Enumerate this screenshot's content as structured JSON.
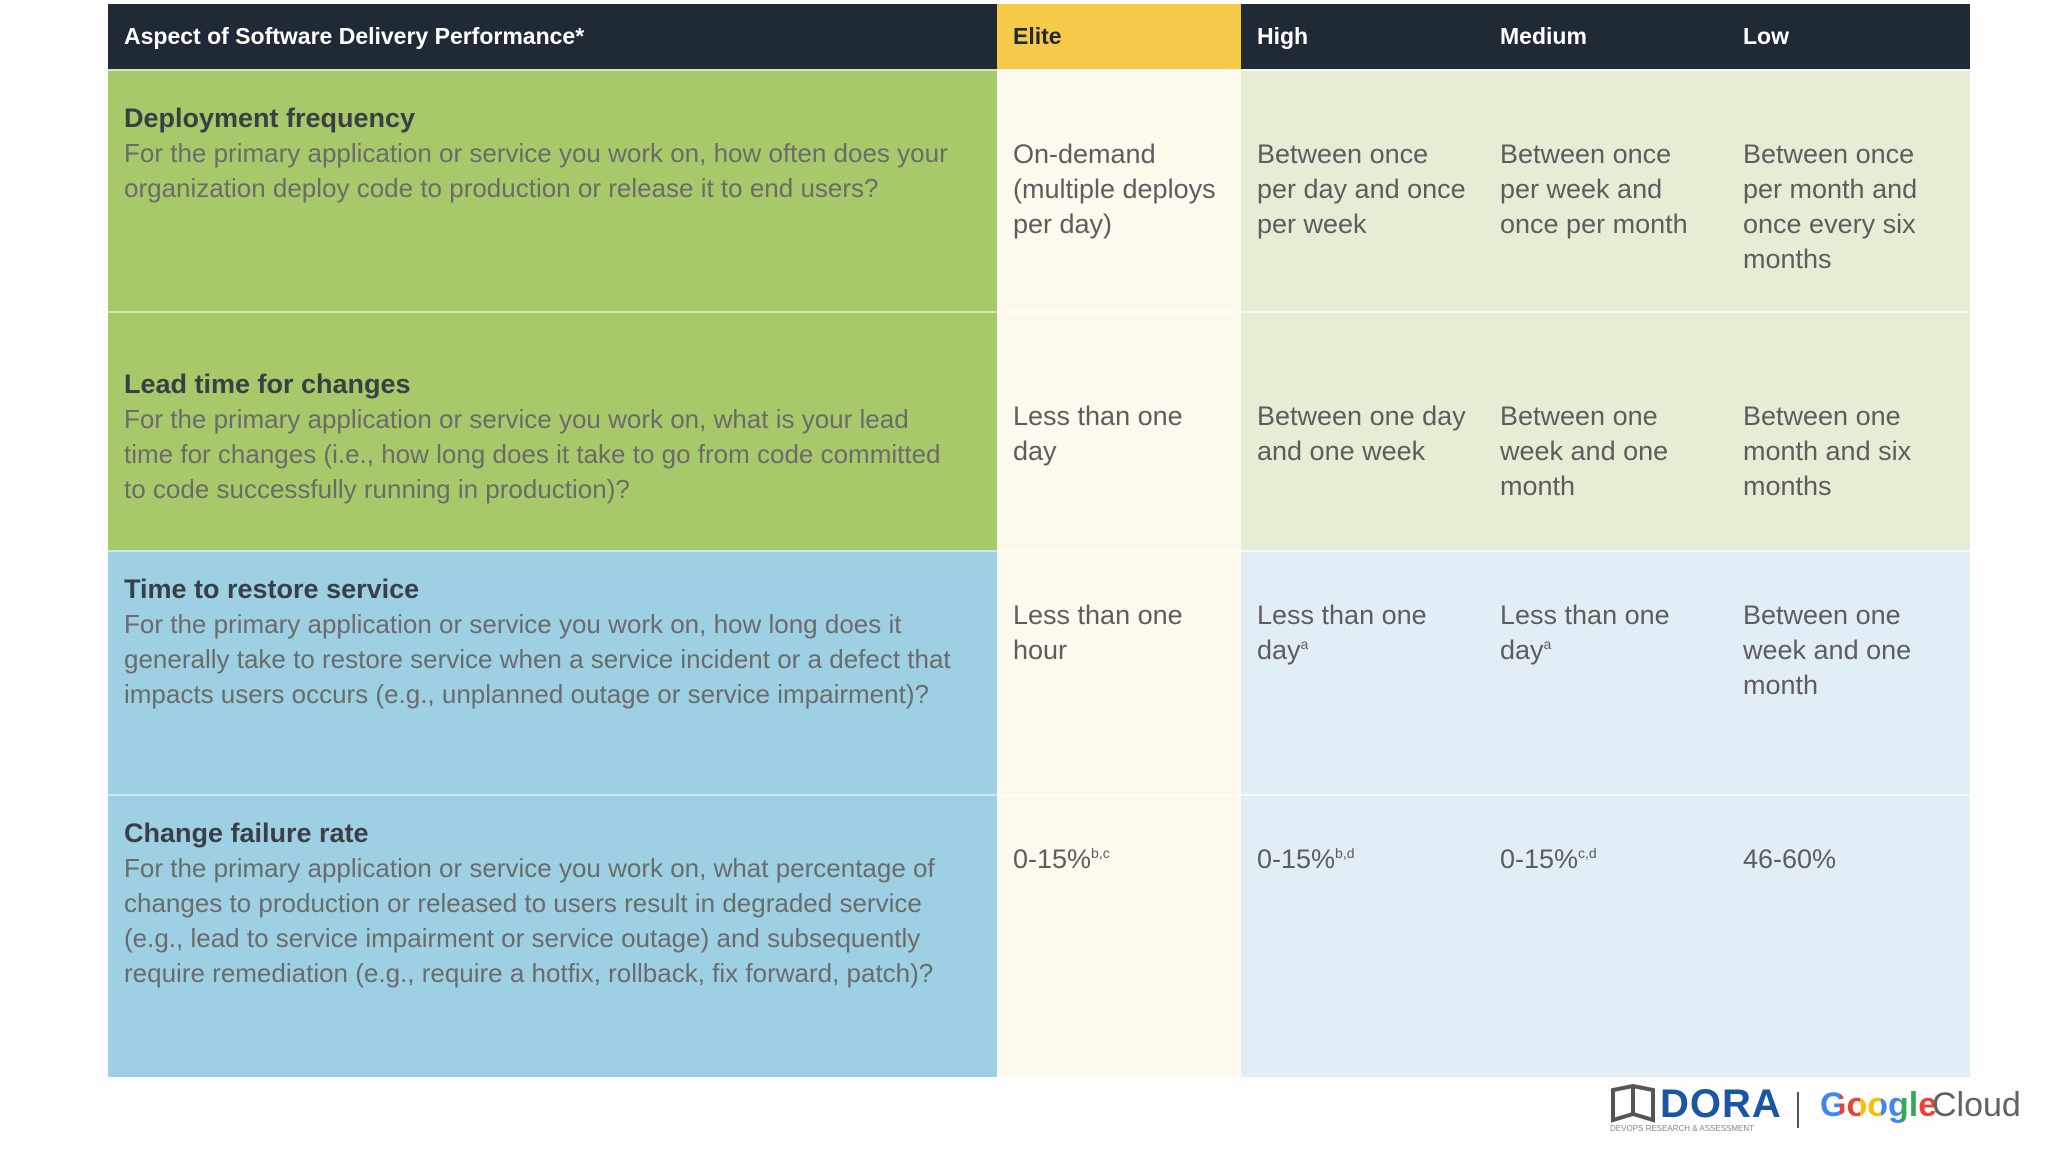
{
  "table": {
    "header": [
      "Aspect of Software Delivery Performance*",
      "Elite",
      "High",
      "Medium",
      "Low"
    ],
    "rows": [
      {
        "title": "Deployment frequency",
        "description": "For the primary application or service you work on, how often does your organization deploy code to production or release it to end users?",
        "cells": [
          {
            "text": "On-demand (multiple deploys per day)"
          },
          {
            "text": "Between once per day and once per week"
          },
          {
            "text": "Between once per week and once per month"
          },
          {
            "text": "Between once per month and once every six months"
          }
        ]
      },
      {
        "title": "Lead time for changes",
        "description": "For the primary application or service you work on, what is your lead time for changes (i.e., how long does it take to go from code committed to code successfully running in production)?",
        "cells": [
          {
            "text": "Less than one day"
          },
          {
            "text": "Between one day and one week"
          },
          {
            "text": "Between one week and one month"
          },
          {
            "text": "Between one month and six months"
          }
        ]
      },
      {
        "title": "Time to restore service",
        "description": "For the primary application or service you work on, how long does it generally take to restore service when a service incident or a defect that impacts users occurs (e.g., unplanned outage or service impairment)?",
        "cells": [
          {
            "text": "Less than one hour"
          },
          {
            "text": "Less than one day",
            "sup": "a"
          },
          {
            "text": "Less than one day",
            "sup": "a"
          },
          {
            "text": "Between one week and one month"
          }
        ]
      },
      {
        "title": "Change failure rate",
        "description": "For the primary application or service you work on, what percentage of changes to production or released to users result in degraded service (e.g., lead to service impairment or service outage) and subsequently require remediation (e.g., require a hotfix, rollback, fix forward, patch)?",
        "cells": [
          {
            "text": "0-15%",
            "sup": "b,c"
          },
          {
            "text": "0-15%",
            "sup": "b,d"
          },
          {
            "text": "0-15%",
            "sup": "c,d"
          },
          {
            "text": "46-60%"
          }
        ]
      }
    ]
  },
  "footer": {
    "dora": "DORA",
    "dora_tagline": "DEVOPS RESEARCH & ASSESSMENT",
    "google": "Google",
    "cloud": "Cloud"
  }
}
